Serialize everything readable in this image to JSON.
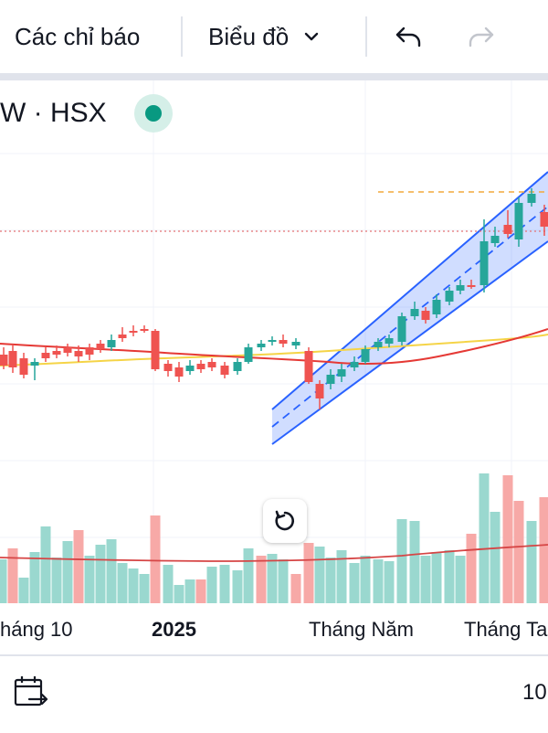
{
  "toolbar": {
    "indicators_label": "Các chỉ báo",
    "chart_type_label": "Biểu đồ",
    "undo_icon": "undo-icon",
    "redo_icon": "redo-icon"
  },
  "symbol": {
    "label": "W · HSX",
    "status_color": "#089981"
  },
  "xaxis": {
    "labels": [
      "háng 10",
      "2025",
      "Tháng Năm",
      "Tháng Ta"
    ]
  },
  "footer": {
    "date_range_icon": "calendar-goto-icon",
    "zoom_text": "10"
  },
  "colors": {
    "up": "#26a69a",
    "down": "#ef5350",
    "channel": "#2962ff",
    "ma_fast": "#f5d447",
    "ma_slow": "#e53935"
  }
}
